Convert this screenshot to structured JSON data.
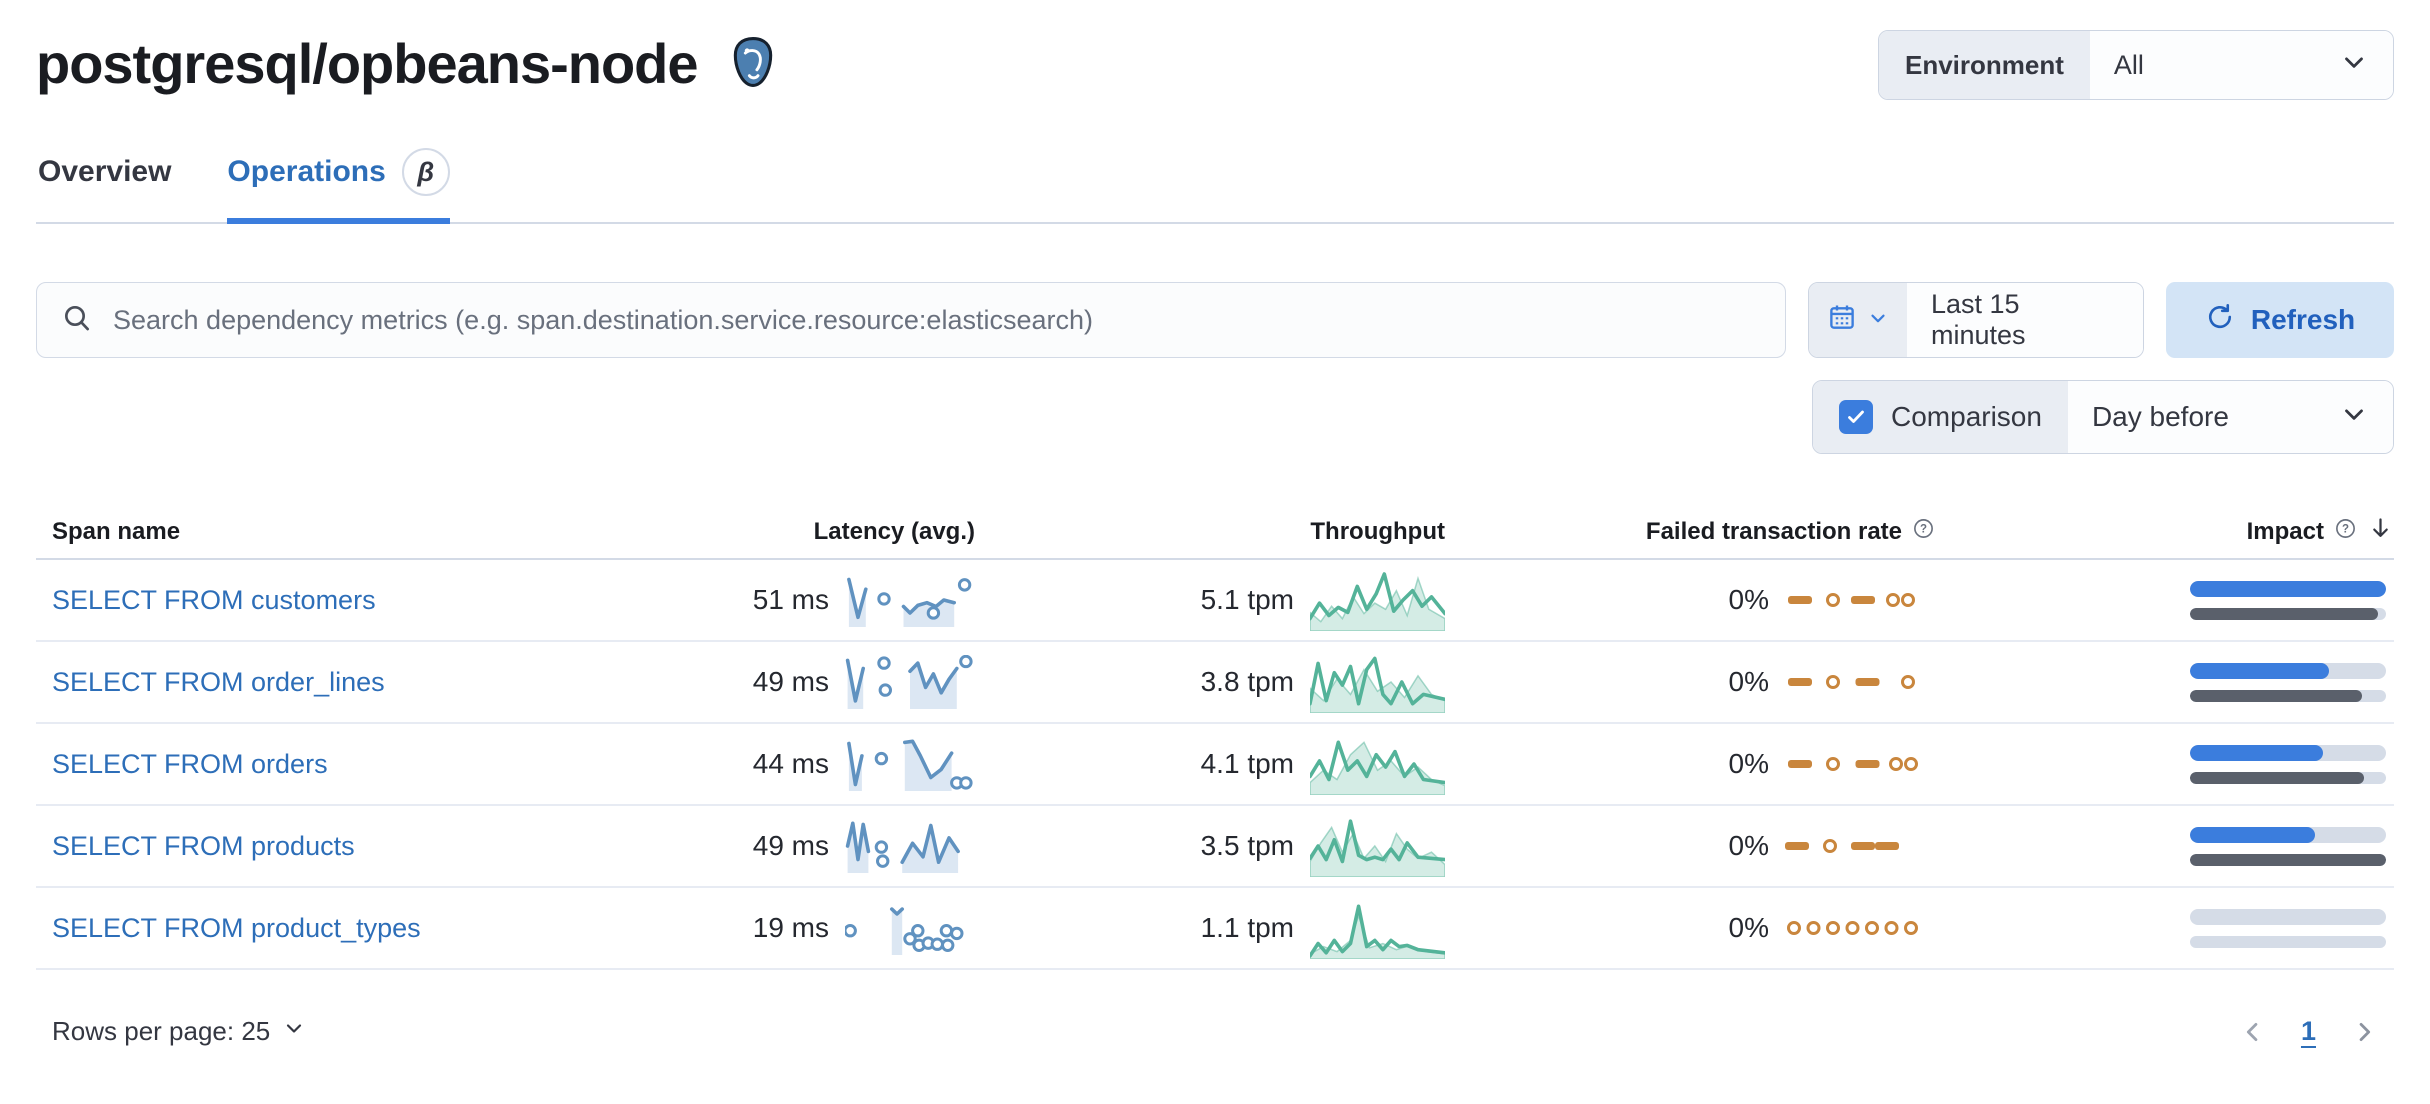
{
  "header": {
    "title": "postgresql/opbeans-node",
    "logo": "postgresql-elephant-icon",
    "environment_label": "Environment",
    "environment_value": "All"
  },
  "tabs": [
    {
      "label": "Overview",
      "active": false
    },
    {
      "label": "Operations",
      "active": true,
      "badge": "β"
    }
  ],
  "toolbar": {
    "search_placeholder": "Search dependency metrics (e.g. span.destination.service.resource:elasticsearch)",
    "time_range": "Last 15 minutes",
    "refresh_label": "Refresh",
    "comparison_label": "Comparison",
    "comparison_checked": true,
    "comparison_value": "Day before"
  },
  "table": {
    "columns": [
      "Span name",
      "Latency (avg.)",
      "Throughput",
      "Failed transaction rate",
      "Impact"
    ],
    "rows": [
      {
        "span_name": "SELECT FROM customers",
        "latency": "51 ms",
        "throughput": "5.1 tpm",
        "failed_rate": "0%",
        "impact_current": 100,
        "impact_previous": 96,
        "latency_spark": {
          "segments": [
            [
              [
                0.03,
                0.12
              ],
              [
                0.1,
                0.82
              ],
              [
                0.16,
                0.3
              ]
            ],
            [
              [
                0.45,
                0.62
              ],
              [
                0.5,
                0.74
              ],
              [
                0.56,
                0.6
              ],
              [
                0.63,
                0.55
              ],
              [
                0.7,
                0.62
              ],
              [
                0.76,
                0.5
              ],
              [
                0.84,
                0.55
              ]
            ]
          ],
          "dots": [
            [
              0.3,
              0.48
            ],
            [
              0.68,
              0.74
            ],
            [
              0.92,
              0.22
            ]
          ]
        },
        "throughput_spark": {
          "line": [
            [
              0,
              0.8
            ],
            [
              0.07,
              0.55
            ],
            [
              0.14,
              0.75
            ],
            [
              0.21,
              0.62
            ],
            [
              0.28,
              0.7
            ],
            [
              0.35,
              0.28
            ],
            [
              0.42,
              0.65
            ],
            [
              0.49,
              0.4
            ],
            [
              0.55,
              0.08
            ],
            [
              0.62,
              0.68
            ],
            [
              0.69,
              0.5
            ],
            [
              0.76,
              0.35
            ],
            [
              0.83,
              0.6
            ],
            [
              0.9,
              0.45
            ],
            [
              1,
              0.72
            ]
          ],
          "compare": [
            [
              0,
              0.7
            ],
            [
              0.08,
              0.85
            ],
            [
              0.16,
              0.6
            ],
            [
              0.24,
              0.8
            ],
            [
              0.32,
              0.45
            ],
            [
              0.4,
              0.72
            ],
            [
              0.48,
              0.55
            ],
            [
              0.56,
              0.65
            ],
            [
              0.64,
              0.35
            ],
            [
              0.72,
              0.75
            ],
            [
              0.8,
              0.15
            ],
            [
              0.88,
              0.65
            ],
            [
              1,
              0.8
            ]
          ]
        },
        "failed_spark": [
          {
            "t": "dash",
            "x": 0.1
          },
          {
            "t": "dot",
            "x": 0.32
          },
          {
            "t": "dash",
            "x": 0.52
          },
          {
            "t": "dot",
            "x": 0.72
          },
          {
            "t": "dot",
            "x": 0.82
          }
        ]
      },
      {
        "span_name": "SELECT FROM order_lines",
        "latency": "49 ms",
        "throughput": "3.8 tpm",
        "failed_rate": "0%",
        "impact_current": 71,
        "impact_previous": 88,
        "latency_spark": {
          "segments": [
            [
              [
                0.02,
                0.1
              ],
              [
                0.08,
                0.85
              ],
              [
                0.14,
                0.25
              ]
            ],
            [
              [
                0.5,
                0.3
              ],
              [
                0.56,
                0.15
              ],
              [
                0.62,
                0.6
              ],
              [
                0.68,
                0.35
              ],
              [
                0.74,
                0.7
              ],
              [
                0.8,
                0.45
              ],
              [
                0.86,
                0.25
              ]
            ]
          ],
          "dots": [
            [
              0.3,
              0.15
            ],
            [
              0.31,
              0.65
            ],
            [
              0.93,
              0.12
            ]
          ]
        },
        "throughput_spark": {
          "line": [
            [
              0,
              0.85
            ],
            [
              0.06,
              0.2
            ],
            [
              0.12,
              0.8
            ],
            [
              0.18,
              0.35
            ],
            [
              0.24,
              0.55
            ],
            [
              0.3,
              0.25
            ],
            [
              0.36,
              0.85
            ],
            [
              0.42,
              0.3
            ],
            [
              0.48,
              0.12
            ],
            [
              0.54,
              0.7
            ],
            [
              0.6,
              0.85
            ],
            [
              0.68,
              0.5
            ],
            [
              0.76,
              0.85
            ],
            [
              0.84,
              0.7
            ],
            [
              1,
              0.78
            ]
          ],
          "compare": [
            [
              0,
              0.6
            ],
            [
              0.1,
              0.8
            ],
            [
              0.2,
              0.45
            ],
            [
              0.3,
              0.7
            ],
            [
              0.4,
              0.3
            ],
            [
              0.5,
              0.65
            ],
            [
              0.6,
              0.5
            ],
            [
              0.7,
              0.75
            ],
            [
              0.8,
              0.4
            ],
            [
              0.9,
              0.7
            ],
            [
              1,
              0.8
            ]
          ]
        },
        "failed_spark": [
          {
            "t": "dash",
            "x": 0.1
          },
          {
            "t": "dot",
            "x": 0.32
          },
          {
            "t": "dash",
            "x": 0.55
          },
          {
            "t": "dot",
            "x": 0.82
          }
        ]
      },
      {
        "span_name": "SELECT FROM orders",
        "latency": "44 ms",
        "throughput": "4.1 tpm",
        "failed_rate": "0%",
        "impact_current": 68,
        "impact_previous": 89,
        "latency_spark": {
          "segments": [
            [
              [
                0.03,
                0.12
              ],
              [
                0.08,
                0.88
              ],
              [
                0.13,
                0.35
              ]
            ],
            [
              [
                0.46,
                0.1
              ],
              [
                0.52,
                0.08
              ],
              [
                0.58,
                0.35
              ],
              [
                0.66,
                0.75
              ],
              [
                0.74,
                0.6
              ],
              [
                0.82,
                0.3
              ]
            ]
          ],
          "dots": [
            [
              0.28,
              0.4
            ],
            [
              0.86,
              0.85
            ],
            [
              0.93,
              0.85
            ]
          ]
        },
        "throughput_spark": {
          "line": [
            [
              0,
              0.7
            ],
            [
              0.07,
              0.45
            ],
            [
              0.14,
              0.75
            ],
            [
              0.21,
              0.15
            ],
            [
              0.28,
              0.6
            ],
            [
              0.35,
              0.45
            ],
            [
              0.42,
              0.7
            ],
            [
              0.49,
              0.35
            ],
            [
              0.56,
              0.55
            ],
            [
              0.63,
              0.3
            ],
            [
              0.7,
              0.7
            ],
            [
              0.77,
              0.5
            ],
            [
              0.84,
              0.75
            ],
            [
              1,
              0.8
            ]
          ],
          "compare": [
            [
              0,
              0.8
            ],
            [
              0.1,
              0.6
            ],
            [
              0.2,
              0.75
            ],
            [
              0.3,
              0.35
            ],
            [
              0.4,
              0.15
            ],
            [
              0.5,
              0.6
            ],
            [
              0.6,
              0.45
            ],
            [
              0.7,
              0.7
            ],
            [
              0.8,
              0.55
            ],
            [
              0.9,
              0.75
            ],
            [
              1,
              0.85
            ]
          ]
        },
        "failed_spark": [
          {
            "t": "dash",
            "x": 0.1
          },
          {
            "t": "dot",
            "x": 0.32
          },
          {
            "t": "dash",
            "x": 0.55
          },
          {
            "t": "dot",
            "x": 0.74
          },
          {
            "t": "dot",
            "x": 0.84
          }
        ]
      },
      {
        "span_name": "SELECT FROM products",
        "latency": "49 ms",
        "throughput": "3.5 tpm",
        "failed_rate": "0%",
        "impact_current": 64,
        "impact_previous": 100,
        "latency_spark": {
          "segments": [
            [
              [
                0.02,
                0.5
              ],
              [
                0.06,
                0.08
              ],
              [
                0.1,
                0.75
              ],
              [
                0.14,
                0.1
              ],
              [
                0.18,
                0.6
              ]
            ],
            [
              [
                0.44,
                0.8
              ],
              [
                0.52,
                0.45
              ],
              [
                0.6,
                0.7
              ],
              [
                0.66,
                0.12
              ],
              [
                0.72,
                0.8
              ],
              [
                0.8,
                0.35
              ],
              [
                0.87,
                0.6
              ]
            ]
          ],
          "dots": [
            [
              0.28,
              0.52
            ],
            [
              0.29,
              0.78
            ]
          ]
        },
        "throughput_spark": {
          "line": [
            [
              0,
              0.7
            ],
            [
              0.06,
              0.5
            ],
            [
              0.12,
              0.72
            ],
            [
              0.18,
              0.4
            ],
            [
              0.24,
              0.75
            ],
            [
              0.3,
              0.1
            ],
            [
              0.36,
              0.65
            ],
            [
              0.42,
              0.72
            ],
            [
              0.48,
              0.68
            ],
            [
              0.54,
              0.72
            ],
            [
              0.6,
              0.55
            ],
            [
              0.66,
              0.72
            ],
            [
              0.72,
              0.45
            ],
            [
              0.8,
              0.68
            ],
            [
              1,
              0.72
            ]
          ],
          "compare": [
            [
              0,
              0.75
            ],
            [
              0.08,
              0.45
            ],
            [
              0.16,
              0.2
            ],
            [
              0.24,
              0.6
            ],
            [
              0.32,
              0.3
            ],
            [
              0.4,
              0.7
            ],
            [
              0.48,
              0.5
            ],
            [
              0.56,
              0.75
            ],
            [
              0.64,
              0.3
            ],
            [
              0.72,
              0.55
            ],
            [
              0.8,
              0.7
            ],
            [
              0.9,
              0.6
            ],
            [
              1,
              0.8
            ]
          ]
        },
        "failed_spark": [
          {
            "t": "dash",
            "x": 0.08
          },
          {
            "t": "dot",
            "x": 0.3
          },
          {
            "t": "dash",
            "x": 0.52
          },
          {
            "t": "dash",
            "x": 0.68
          }
        ]
      },
      {
        "span_name": "SELECT FROM product_types",
        "latency": "19 ms",
        "throughput": "1.1 tpm",
        "failed_rate": "0%",
        "impact_current": 0,
        "impact_previous": 0,
        "latency_spark": {
          "segments": [
            [
              [
                0.36,
                0.15
              ],
              [
                0.4,
                0.24
              ],
              [
                0.44,
                0.15
              ]
            ]
          ],
          "dots": [
            [
              0.04,
              0.55
            ],
            [
              0.5,
              0.7
            ],
            [
              0.56,
              0.55
            ],
            [
              0.57,
              0.82
            ],
            [
              0.64,
              0.78
            ],
            [
              0.71,
              0.8
            ],
            [
              0.78,
              0.55
            ],
            [
              0.79,
              0.82
            ],
            [
              0.86,
              0.6
            ]
          ]
        },
        "throughput_spark": {
          "line": [
            [
              0,
              0.95
            ],
            [
              0.06,
              0.75
            ],
            [
              0.12,
              0.9
            ],
            [
              0.18,
              0.7
            ],
            [
              0.24,
              0.88
            ],
            [
              0.3,
              0.75
            ],
            [
              0.36,
              0.15
            ],
            [
              0.42,
              0.8
            ],
            [
              0.48,
              0.7
            ],
            [
              0.54,
              0.85
            ],
            [
              0.6,
              0.7
            ],
            [
              0.66,
              0.8
            ],
            [
              0.72,
              0.78
            ],
            [
              0.8,
              0.85
            ],
            [
              1,
              0.9
            ]
          ],
          "compare": [
            [
              0,
              0.92
            ],
            [
              0.1,
              0.8
            ],
            [
              0.2,
              0.88
            ],
            [
              0.3,
              0.7
            ],
            [
              0.36,
              0.3
            ],
            [
              0.44,
              0.82
            ],
            [
              0.54,
              0.75
            ],
            [
              0.64,
              0.85
            ],
            [
              0.74,
              0.78
            ],
            [
              0.86,
              0.88
            ],
            [
              1,
              0.92
            ]
          ]
        },
        "failed_spark": [
          {
            "t": "dot",
            "x": 0.06
          },
          {
            "t": "dot",
            "x": 0.19
          },
          {
            "t": "dot",
            "x": 0.32
          },
          {
            "t": "dot",
            "x": 0.45
          },
          {
            "t": "dot",
            "x": 0.58
          },
          {
            "t": "dot",
            "x": 0.71
          },
          {
            "t": "dot",
            "x": 0.84
          }
        ]
      }
    ]
  },
  "footer": {
    "rows_per_page_label": "Rows per page: 25",
    "page": "1"
  },
  "colors": {
    "link_blue": "#2d6eb8",
    "primary_blue": "#3b7ddd",
    "refresh_bg": "#d3e4f6",
    "latency_blue": "#6092c0",
    "latency_area": "#dce7f3",
    "throughput_green": "#54b399",
    "failed_orange": "#c9863d",
    "impact_current": "#3b7ddd",
    "impact_previous": "#5a606b",
    "impact_track": "#d5dce7",
    "segment_bg": "#e9edf3",
    "border": "#d3dae6"
  }
}
